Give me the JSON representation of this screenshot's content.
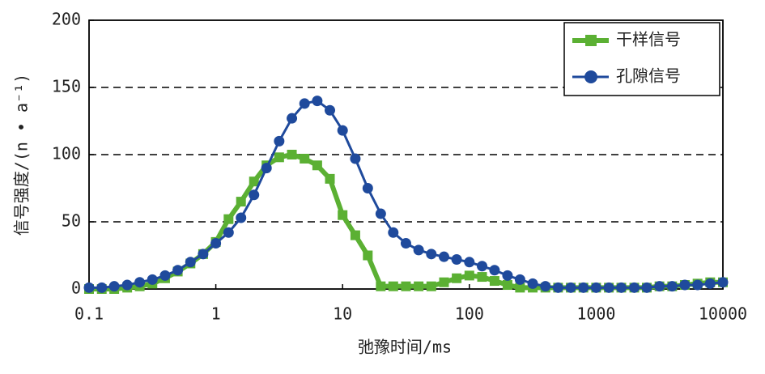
{
  "chart_data": {
    "type": "line",
    "xlabel": "弛豫时间/ms",
    "ylabel": "信号强度/(n • a⁻¹)",
    "x": [
      0.1,
      0.126,
      0.158,
      0.2,
      0.251,
      0.316,
      0.398,
      0.501,
      0.631,
      0.794,
      1,
      1.26,
      1.58,
      2,
      2.51,
      3.16,
      3.98,
      5.01,
      6.31,
      7.94,
      10,
      12.6,
      15.8,
      20,
      25.1,
      31.6,
      39.8,
      50.1,
      63.1,
      79.4,
      100,
      126,
      158,
      200,
      251,
      316,
      398,
      501,
      631,
      794,
      1000,
      1260,
      1580,
      2000,
      2510,
      3160,
      3980,
      5010,
      6310,
      7940,
      10000
    ],
    "series": [
      {
        "name": "干样信号",
        "color": "#5bb033",
        "marker": "square",
        "values": [
          0,
          0,
          0,
          1,
          2,
          4,
          8,
          13,
          19,
          26,
          35,
          52,
          65,
          80,
          92,
          98,
          100,
          97,
          92,
          82,
          55,
          40,
          25,
          2,
          2,
          2,
          2,
          2,
          5,
          8,
          10,
          9,
          6,
          3,
          1,
          1,
          1,
          1,
          1,
          1,
          1,
          1,
          1,
          1,
          1,
          2,
          2,
          3,
          4,
          5,
          5
        ]
      },
      {
        "name": "孔隙信号",
        "color": "#1f4a9c",
        "marker": "circle",
        "values": [
          1,
          1,
          2,
          3,
          5,
          7,
          10,
          14,
          20,
          26,
          34,
          42,
          53,
          70,
          90,
          110,
          127,
          138,
          140,
          133,
          118,
          97,
          75,
          56,
          42,
          34,
          29,
          26,
          24,
          22,
          20,
          17,
          14,
          10,
          7,
          4,
          2,
          1,
          1,
          1,
          1,
          1,
          1,
          1,
          1,
          2,
          2,
          3,
          3,
          4,
          5
        ]
      }
    ],
    "xscale": "log",
    "xlim": [
      0.1,
      10000
    ],
    "xticks": [
      0.1,
      1,
      10,
      100,
      1000,
      10000
    ],
    "ylim": [
      0,
      200
    ],
    "yticks": [
      0,
      50,
      100,
      150,
      200
    ],
    "grid": true,
    "legend": "upper right"
  }
}
